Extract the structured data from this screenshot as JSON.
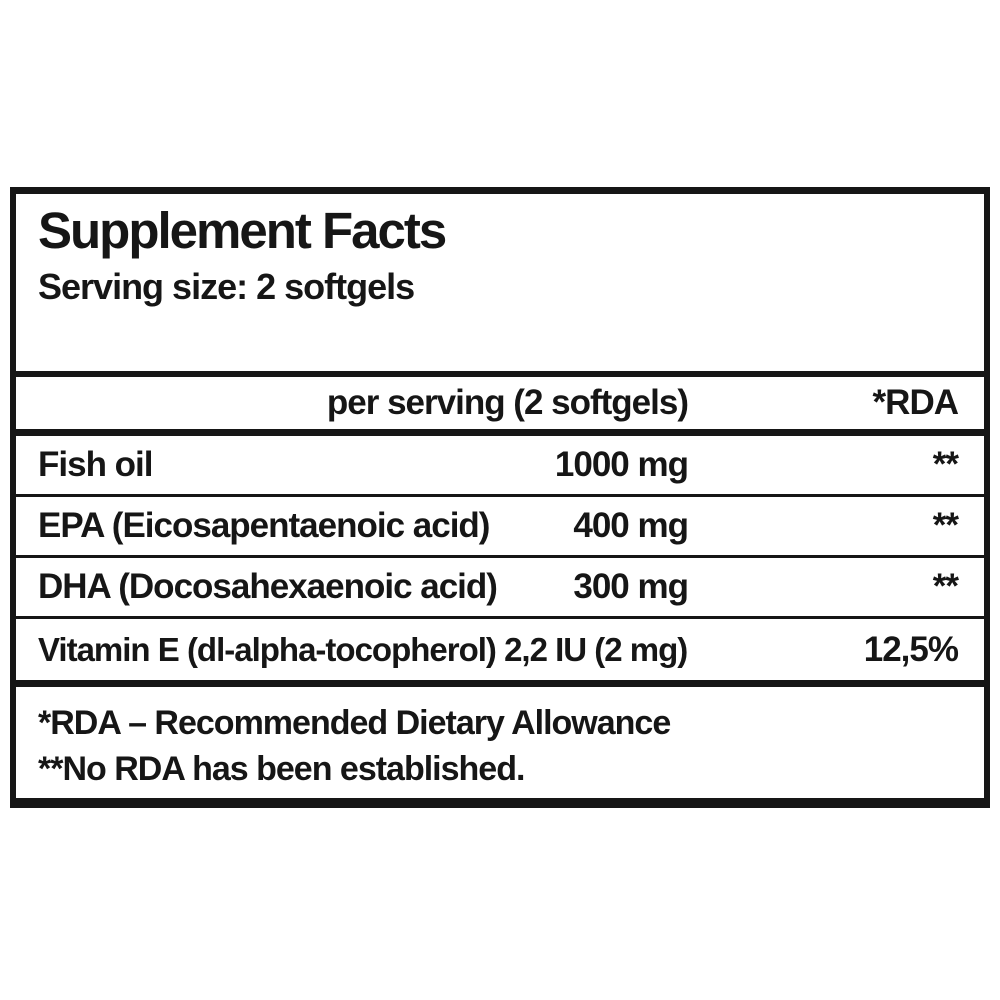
{
  "label": {
    "title": "Supplement Facts",
    "serving_size": "Serving size: 2 softgels",
    "columns": {
      "amount_header": "per serving (2 softgels)",
      "rda_header": "*RDA"
    },
    "rows": [
      {
        "name": "Fish oil",
        "amount": "1000 mg",
        "rda": "**"
      },
      {
        "name": "EPA (Eicosapentaenoic acid)",
        "amount": "400 mg",
        "rda": "**"
      },
      {
        "name": "DHA (Docosahexaenoic acid)",
        "amount": "300 mg",
        "rda": "**"
      },
      {
        "name": "Vitamin E (dl-alpha-tocopherol) 2,2 IU (2 mg)",
        "amount": "",
        "rda": "12,5%"
      }
    ],
    "footnotes": [
      "*RDA – Recommended Dietary Allowance",
      "**No RDA has been established."
    ],
    "colors": {
      "text": "#161616",
      "border": "#161616",
      "background": "#ffffff"
    }
  }
}
